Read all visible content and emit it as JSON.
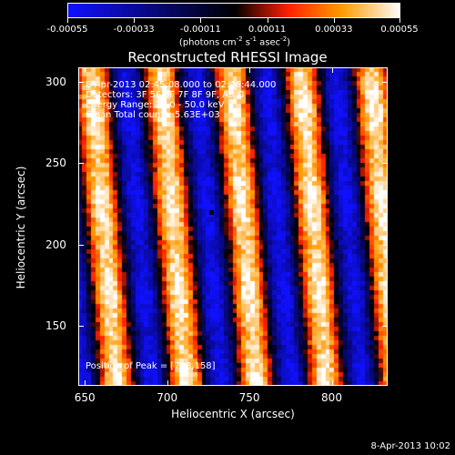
{
  "colorbar": {
    "tick_labels": [
      "-0.00055",
      "-0.00033",
      "-0.00011",
      "0.00011",
      "0.00033",
      "0.00055"
    ],
    "tick_values": [
      -0.00055,
      -0.00033,
      -0.00011,
      0.00011,
      0.00033,
      0.00055
    ],
    "range": [
      -0.00055,
      0.00055
    ],
    "units_parts": [
      "(photons cm",
      "-2",
      " s",
      "-1",
      " asec",
      "-2",
      ")"
    ],
    "colors": {
      "low": "#1010ff",
      "mid": "#000000",
      "red": "#ff2000",
      "orange": "#ff9a00",
      "high": "#ffffff"
    }
  },
  "chart_data": {
    "type": "heatmap",
    "title": "Reconstructed RHESSI Image",
    "xlabel": "Heliocentric X (arcsec)",
    "ylabel": "Heliocentric Y (arcsec)",
    "xlim": [
      646,
      834
    ],
    "ylim": [
      113,
      309
    ],
    "x_ticks": [
      650,
      700,
      750,
      800
    ],
    "y_ticks": [
      150,
      200,
      250,
      300
    ],
    "x_tick_labels": [
      "650",
      "700",
      "750",
      "800"
    ],
    "y_tick_labels": [
      "150",
      "200",
      "250",
      "300"
    ],
    "stripe_period_arcsec": 42.5,
    "stripe_tilt_arcsec_per_arcsec": 0.08,
    "peak": [
      743,
      158
    ],
    "marker": [
      727,
      220
    ],
    "annotations": [
      "8-Apr-2013 02:45:08.000 to 02:46:44.000",
      "Detectors: 3F 5F 6F 7F 8F 9F, Att 0",
      "Energy Range: 25.0 - 50.0 keV",
      "Clean     Total counts: 5.63E+03"
    ],
    "peak_label": "Position of Peak = [743,158]"
  },
  "footer": {
    "timestamp": "8-Apr-2013 10:02"
  }
}
